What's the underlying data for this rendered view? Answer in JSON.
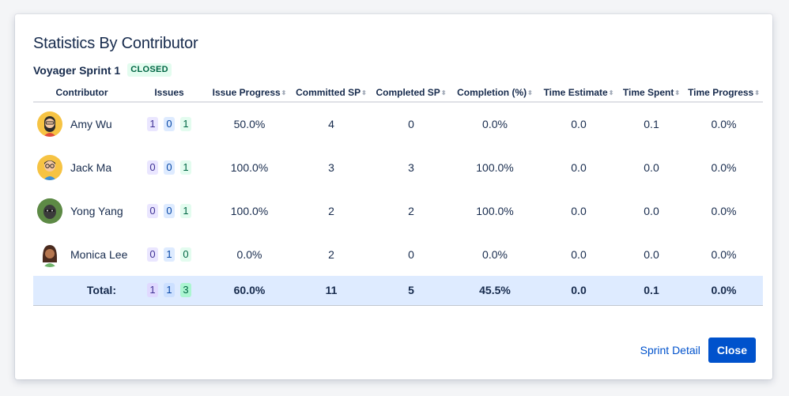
{
  "dialog": {
    "title": "Statistics By Contributor",
    "sprint_name": "Voyager Sprint 1",
    "sprint_status": "CLOSED"
  },
  "table": {
    "headers": {
      "contributor": "Contributor",
      "issues": "Issues",
      "issue_progress": "Issue Progress",
      "committed_sp": "Committed SP",
      "completed_sp": "Completed SP",
      "completion": "Completion (%)",
      "time_estimate": "Time Estimate",
      "time_spent": "Time Spent",
      "time_progress": "Time Progress"
    },
    "rows": [
      {
        "name": "Amy Wu",
        "todo": "1",
        "inprogress": "0",
        "done": "1",
        "issue_progress": "50.0%",
        "committed_sp": "4",
        "completed_sp": "0",
        "completion": "0.0%",
        "time_estimate": "0.0",
        "time_spent": "0.1",
        "time_progress": "0.0%"
      },
      {
        "name": "Jack Ma",
        "todo": "0",
        "inprogress": "0",
        "done": "1",
        "issue_progress": "100.0%",
        "committed_sp": "3",
        "completed_sp": "3",
        "completion": "100.0%",
        "time_estimate": "0.0",
        "time_spent": "0.0",
        "time_progress": "0.0%"
      },
      {
        "name": "Yong Yang",
        "todo": "0",
        "inprogress": "0",
        "done": "1",
        "issue_progress": "100.0%",
        "committed_sp": "2",
        "completed_sp": "2",
        "completion": "100.0%",
        "time_estimate": "0.0",
        "time_spent": "0.0",
        "time_progress": "0.0%"
      },
      {
        "name": "Monica Lee",
        "todo": "0",
        "inprogress": "1",
        "done": "0",
        "issue_progress": "0.0%",
        "committed_sp": "2",
        "completed_sp": "0",
        "completion": "0.0%",
        "time_estimate": "0.0",
        "time_spent": "0.0",
        "time_progress": "0.0%"
      }
    ],
    "total": {
      "label": "Total:",
      "todo": "1",
      "inprogress": "1",
      "done": "3",
      "issue_progress": "60.0%",
      "committed_sp": "11",
      "completed_sp": "5",
      "completion": "45.5%",
      "time_estimate": "0.0",
      "time_spent": "0.1",
      "time_progress": "0.0%"
    }
  },
  "footer": {
    "sprint_detail_label": "Sprint Detail",
    "close_label": "Close"
  },
  "icons": {
    "sort": "sort-icon",
    "avatars": [
      "avatar-amy-wu",
      "avatar-jack-ma",
      "avatar-yong-yang",
      "avatar-monica-lee"
    ]
  },
  "colors": {
    "primary": "#0052cc",
    "closed_lozenge_bg": "#e3fcef",
    "closed_lozenge_text": "#006644",
    "todo_badge": "#eae6ff",
    "inprogress_badge": "#deebff",
    "done_badge": "#e3fcef",
    "total_row_bg": "#deebff"
  }
}
